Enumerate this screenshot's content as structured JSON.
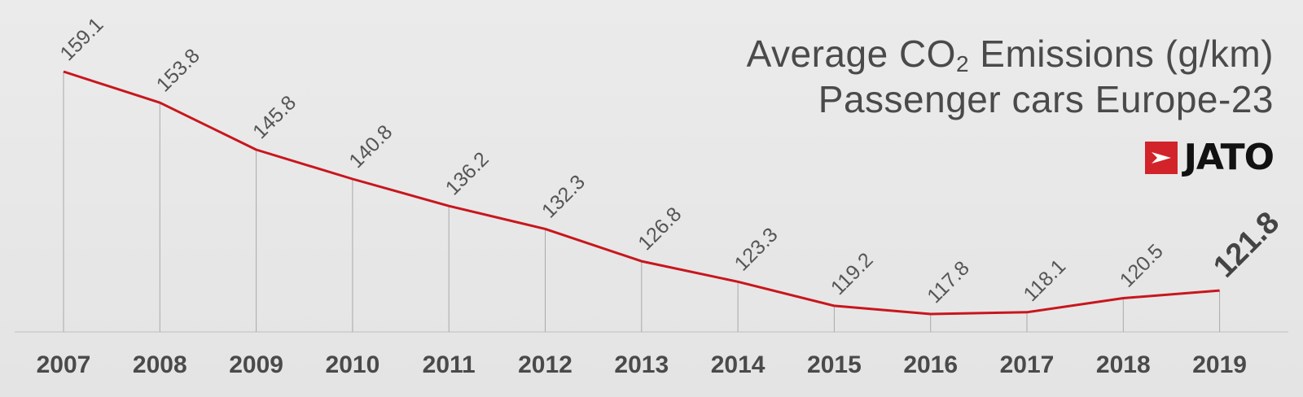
{
  "title": {
    "prefix": "Average CO",
    "subscript": "2",
    "suffix": " Emissions (g/km)",
    "subtitle": "Passenger cars Europe-23"
  },
  "logo": {
    "text": "JATO",
    "icon": "jato-arrow-icon",
    "color": "#d2232a"
  },
  "colors": {
    "line": "#c8161d",
    "text": "#555555",
    "gridline": "#a9a9a9"
  },
  "chart_data": {
    "type": "line",
    "title": "Average CO2 Emissions (g/km) Passenger cars Europe-23",
    "xlabel": "",
    "ylabel": "",
    "categories": [
      "2007",
      "2008",
      "2009",
      "2010",
      "2011",
      "2012",
      "2013",
      "2014",
      "2015",
      "2016",
      "2017",
      "2018",
      "2019"
    ],
    "values": [
      159.1,
      153.8,
      145.8,
      140.8,
      136.2,
      132.3,
      126.8,
      123.3,
      119.2,
      117.8,
      118.1,
      120.5,
      121.8
    ],
    "value_labels": [
      "159.1",
      "153.8",
      "145.8",
      "140.8",
      "136.2",
      "132.3",
      "126.8",
      "123.3",
      "119.2",
      "117.8",
      "118.1",
      "120.5",
      "121.8"
    ],
    "highlighted_label": "121.8",
    "grid": false
  }
}
